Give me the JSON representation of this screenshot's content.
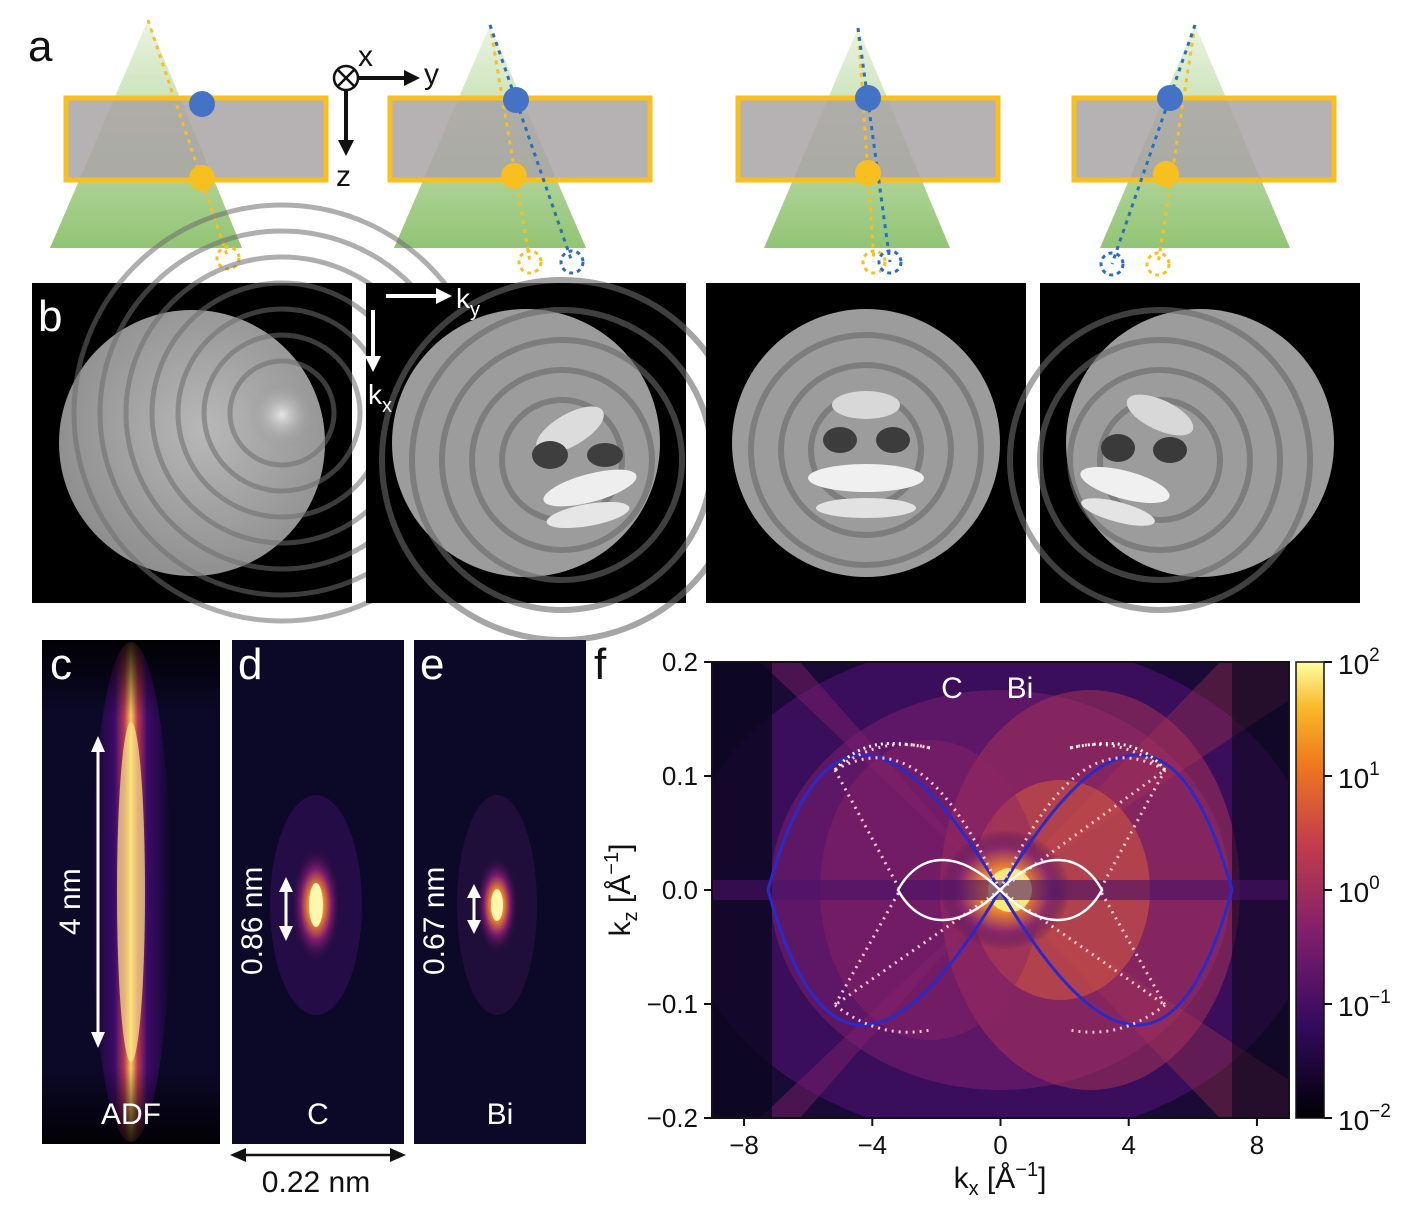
{
  "panels": {
    "a": "a",
    "b": "b",
    "c": "c",
    "d": "d",
    "e": "e",
    "f": "f"
  },
  "schematic_axes": {
    "x": "x",
    "y": "y",
    "z": "z"
  },
  "diffraction_axes": {
    "ky": "k",
    "ky_sub": "y",
    "kx": "k",
    "kx_sub": "x"
  },
  "profiles": [
    {
      "label": "ADF",
      "size": "4 nm"
    },
    {
      "label": "C",
      "size": "0.86 nm"
    },
    {
      "label": "Bi",
      "size": "0.67 nm"
    }
  ],
  "width_scale": "0.22 nm",
  "colors": {
    "slab_fill": "#a9a3a6",
    "slab_border": "#f7bf1f",
    "cone": "#8cc26b",
    "blue_atom": "#4472c4",
    "yellow_atom": "#f7bf1f",
    "blue_curve": "#2a2ac8",
    "dotted_curve": "#f4c8d0"
  },
  "chart_data": {
    "type": "heatmap",
    "title": "",
    "xlabel": "kx [Å−1]",
    "ylabel": "kz [Å−1]",
    "xlim": [
      -9,
      9
    ],
    "ylim": [
      -0.2,
      0.2
    ],
    "xticks": [
      "−8",
      "−4",
      "0",
      "4",
      "8"
    ],
    "xtick_values": [
      -8,
      -4,
      0,
      4,
      8
    ],
    "yticks": [
      "0.2",
      "0.1",
      "0.0",
      "−0.1",
      "−0.2"
    ],
    "ytick_values": [
      0.2,
      0.1,
      0.0,
      -0.1,
      -0.2
    ],
    "region_labels": [
      "C",
      "Bi"
    ],
    "colorbar": {
      "scale": "log",
      "range": [
        0.01,
        100
      ],
      "ticks": [
        {
          "base": "10",
          "exp": "2"
        },
        {
          "base": "10",
          "exp": "1"
        },
        {
          "base": "10",
          "exp": "0"
        },
        {
          "base": "10",
          "exp": "−1"
        },
        {
          "base": "10",
          "exp": "−2"
        }
      ],
      "colormap": "inferno"
    },
    "overlay_curves": [
      {
        "style": "solid",
        "color": "#2a2ac8",
        "kx_extent": [
          -7.1,
          7.1
        ],
        "kz_extent": [
          -0.125,
          0.125
        ]
      },
      {
        "style": "dotted",
        "color": "#f4c8d0",
        "kx_extent": [
          -5.1,
          5.1
        ],
        "kz_extent": [
          -0.125,
          0.125
        ]
      },
      {
        "style": "solid",
        "color": "#ffffff",
        "kx_extent": [
          -3.1,
          3.1
        ],
        "kz_extent": [
          -0.025,
          0.025
        ]
      }
    ]
  }
}
